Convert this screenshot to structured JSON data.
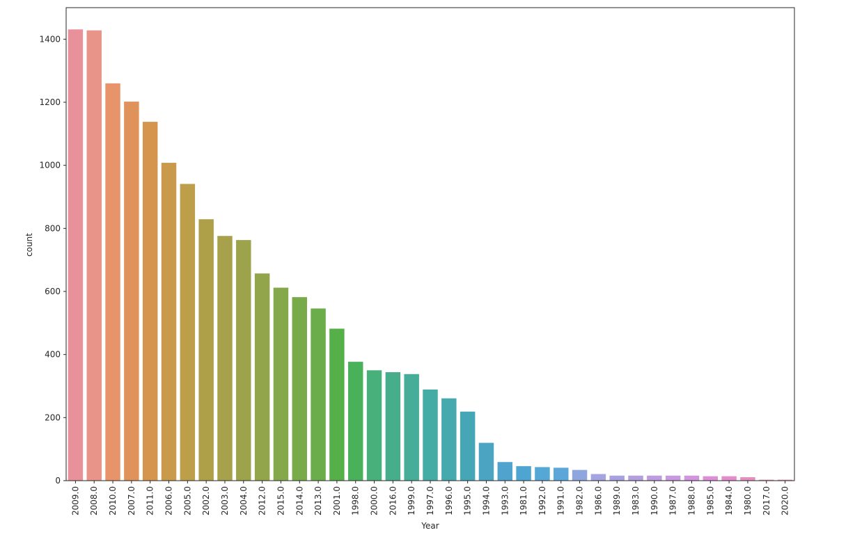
{
  "chart_data": {
    "type": "bar",
    "title": "",
    "xlabel": "Year",
    "ylabel": "count",
    "ylim": [
      0,
      1500
    ],
    "yticks": [
      0,
      200,
      400,
      600,
      800,
      1000,
      1200,
      1400
    ],
    "grid": false,
    "categories": [
      "2009.0",
      "2008.0",
      "2010.0",
      "2007.0",
      "2011.0",
      "2006.0",
      "2005.0",
      "2002.0",
      "2003.0",
      "2004.0",
      "2012.0",
      "2015.0",
      "2014.0",
      "2013.0",
      "2001.0",
      "1998.0",
      "2000.0",
      "2016.0",
      "1999.0",
      "1997.0",
      "1996.0",
      "1995.0",
      "1994.0",
      "1993.0",
      "1981.0",
      "1992.0",
      "1991.0",
      "1982.0",
      "1986.0",
      "1989.0",
      "1983.0",
      "1990.0",
      "1987.0",
      "1988.0",
      "1985.0",
      "1984.0",
      "1980.0",
      "2017.0",
      "2020.0"
    ],
    "values": [
      1431,
      1428,
      1260,
      1202,
      1138,
      1008,
      941,
      829,
      776,
      763,
      657,
      612,
      582,
      546,
      482,
      377,
      350,
      344,
      338,
      289,
      261,
      219,
      120,
      59,
      46,
      43,
      41,
      34,
      21,
      16,
      16,
      16,
      16,
      16,
      14,
      14,
      11,
      3,
      3
    ],
    "colors": [
      "#e8919a",
      "#e99488",
      "#e8946a",
      "#e0925b",
      "#d6954e",
      "#c99a4b",
      "#bd9e4a",
      "#ae9f49",
      "#a6a14a",
      "#9ca34a",
      "#92a54a",
      "#85a84a",
      "#79aa4a",
      "#6aad4a",
      "#55b04a",
      "#4ab15b",
      "#48b07a",
      "#47ae8c",
      "#45ad98",
      "#45aba5",
      "#46a9ad",
      "#45a7b6",
      "#4ba4c2",
      "#4fa3cc",
      "#4fa5d1",
      "#55a7d6",
      "#5ca6da",
      "#8fa5de",
      "#a4a4e0",
      "#a9a2e1",
      "#b39fe0",
      "#be9ce0",
      "#c999df",
      "#d294df",
      "#dc8fd8",
      "#e38dcd",
      "#e58ec0",
      "#e68fb4",
      "#e790a8"
    ]
  }
}
